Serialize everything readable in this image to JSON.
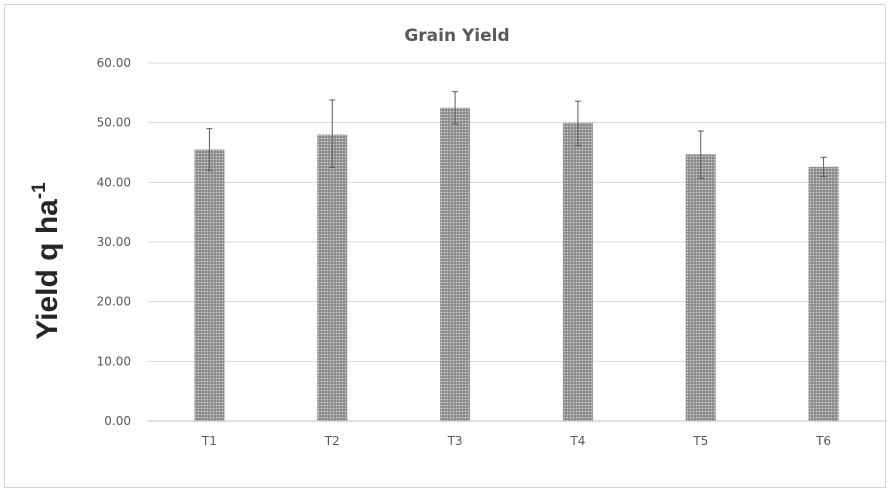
{
  "chart_data": {
    "type": "bar",
    "title": "Grain Yield",
    "xlabel": "",
    "ylabel": "Yield q ha",
    "ylabel_superscript": "-1",
    "categories": [
      "T1",
      "T2",
      "T3",
      "T4",
      "T5",
      "T6"
    ],
    "values": [
      45.5,
      48.0,
      52.5,
      50.0,
      44.7,
      42.6
    ],
    "error_upper": [
      49.0,
      53.8,
      55.2,
      53.6,
      48.6,
      44.2
    ],
    "error_lower": [
      42.0,
      42.5,
      49.8,
      46.2,
      40.7,
      41.0
    ],
    "yticks": [
      "0.00",
      "10.00",
      "20.00",
      "30.00",
      "40.00",
      "50.00",
      "60.00"
    ],
    "ylim": [
      0,
      60
    ],
    "grid": true,
    "legend": "none",
    "bar_pattern": "dotted",
    "colors": {
      "bar_fill": "#8c8c8c",
      "bar_dot": "#d9d9d9",
      "grid": "#d9d9d9",
      "axis": "#bfbfbf",
      "text": "#595959",
      "error_bar": "#595959"
    }
  }
}
